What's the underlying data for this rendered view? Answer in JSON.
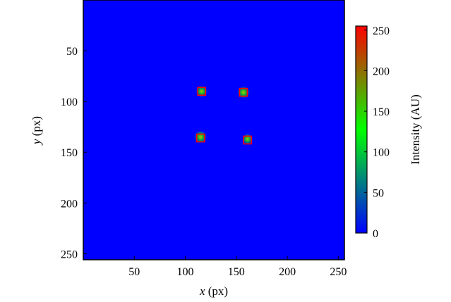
{
  "chart_data": {
    "type": "heatmap",
    "title": "",
    "xlabel": {
      "var": "x",
      "unit": " (px)"
    },
    "ylabel": {
      "var": "y",
      "unit": " (px)"
    },
    "xlim": [
      0,
      256
    ],
    "ylim": [
      256,
      0
    ],
    "y_inverted": true,
    "x_ticks": [
      50,
      100,
      150,
      200,
      250
    ],
    "y_ticks": [
      50,
      100,
      150,
      200,
      250
    ],
    "background_intensity": 0,
    "colorbar": {
      "label": "Intensity (AU)",
      "range": [
        0,
        255
      ],
      "ticks": [
        0,
        50,
        100,
        150,
        200,
        250
      ],
      "colormap": [
        "#0000ff",
        "#008080",
        "#00ff00",
        "#808000",
        "#ff0000"
      ]
    },
    "spots": [
      {
        "x": 116,
        "y": 90,
        "peak": 150
      },
      {
        "x": 157,
        "y": 91,
        "peak": 170
      },
      {
        "x": 115,
        "y": 135,
        "peak": 180
      },
      {
        "x": 161,
        "y": 137,
        "peak": 120
      }
    ],
    "markers": {
      "shape": "square",
      "color": "#ff0000",
      "centers": [
        {
          "x": 116,
          "y": 90
        },
        {
          "x": 157,
          "y": 91
        },
        {
          "x": 115,
          "y": 136
        },
        {
          "x": 161,
          "y": 138
        }
      ]
    }
  }
}
